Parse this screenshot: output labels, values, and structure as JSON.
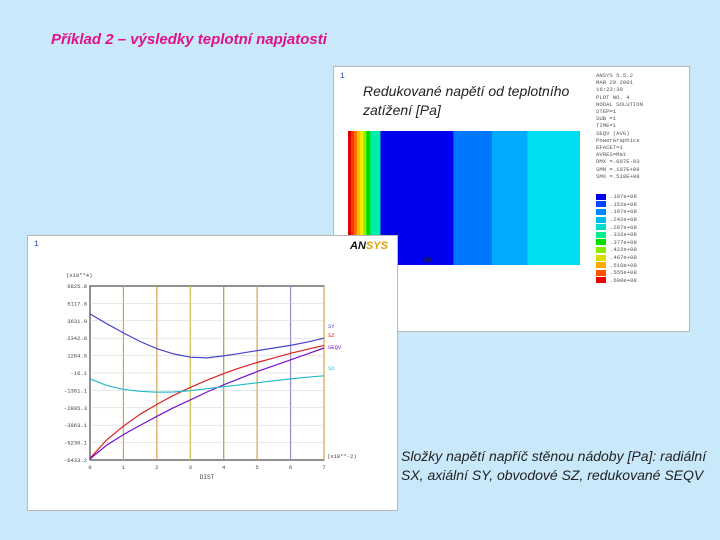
{
  "slide": {
    "title": "Příklad 2 – výsledky teplotní napjatosti"
  },
  "contour": {
    "window_number": "1",
    "caption": "Redukované napětí od teplotního zatížení [Pa]",
    "info_lines": [
      "ANSYS 5.5.2",
      "MAR 29 2001",
      "16:23:30",
      "PLOT NO.   4",
      "NODAL SOLUTION",
      "STEP=1",
      "SUB =1",
      "TIME=1",
      "SEQV      (AVG)",
      "PowerGraphics",
      "EFACET=1",
      "AVRES=Mat",
      "DMX =.607E-03",
      "SMN =.107E+08",
      "SMX =.510E+08"
    ],
    "legend_values": [
      ".107e+08",
      ".152e+08",
      ".197e+08",
      ".242e+08",
      ".287e+08",
      ".332e+08",
      ".377e+08",
      ".422e+08",
      ".467e+08",
      ".510e+08",
      ".555e+08",
      ".600e+08"
    ],
    "legend_colors": [
      "#0000ee",
      "#0044ff",
      "#0088ff",
      "#00bbee",
      "#00ddcc",
      "#00ee88",
      "#00dd00",
      "#88ee00",
      "#dddd00",
      "#ffaa00",
      "#ff5500",
      "#ee0000"
    ],
    "band_colors": [
      "#dd0000",
      "#ff3300",
      "#ff7700",
      "#ffbb00",
      "#eeee00",
      "#99ee00",
      "#00dd00",
      "#00eeaa",
      "#0000ee",
      "#0000ee",
      "#0077ff",
      "#00aaff",
      "#00ddee"
    ],
    "band_widths": [
      3,
      3,
      3,
      3,
      3,
      3,
      4,
      10,
      22,
      50,
      38,
      35,
      52
    ],
    "mark_label": "MN"
  },
  "graph": {
    "window_number": "1",
    "logo_left": "AN",
    "logo_right": "SYS",
    "y_multiplier": "(x10**4)",
    "xlabel": "DIST",
    "end_label": "(x10**-2)",
    "chart_data": {
      "type": "line",
      "title": "",
      "xlabel": "DIST",
      "ylabel": "",
      "x_multiplier": "(x10**-2)",
      "y_multiplier": "(x10**4)",
      "xlim": [
        0,
        7
      ],
      "ylim": [
        -6433.2,
        6825.8
      ],
      "x_ticks": [
        "0",
        "1",
        "2",
        "3",
        "4",
        "5",
        "6",
        "7"
      ],
      "y_ticks": [
        "6825.8",
        "5117.0",
        "3631.9",
        "2342.8",
        "1284.5",
        "-16.1",
        "-1301.1",
        "-2805.3",
        "-3963.1",
        "-5230.1",
        "-6433.2"
      ],
      "series": [
        {
          "name": "SY",
          "color": "#4444cc",
          "x": [
            0,
            0.5,
            1,
            1.5,
            2,
            2.5,
            3,
            3.5,
            4,
            4.5,
            5,
            5.5,
            6,
            6.5,
            7
          ],
          "y": [
            4700,
            3950,
            3250,
            2600,
            2050,
            1650,
            1400,
            1350,
            1500,
            1700,
            1900,
            2100,
            2300,
            2550,
            2850
          ]
        },
        {
          "name": "SZ",
          "color": "#dd2222",
          "x": [
            0,
            0.5,
            1,
            1.5,
            2,
            2.5,
            3,
            3.5,
            4,
            4.5,
            5,
            5.5,
            6,
            6.5,
            7
          ],
          "y": [
            -6300,
            -4900,
            -3850,
            -2950,
            -2200,
            -1500,
            -900,
            -350,
            150,
            600,
            1000,
            1350,
            1700,
            2000,
            2300
          ]
        },
        {
          "name": "SEQV",
          "color": "#7711cc",
          "x": [
            0,
            0.5,
            1,
            1.5,
            2,
            2.5,
            3,
            3.5,
            4,
            4.5,
            5,
            5.5,
            6,
            6.5,
            7
          ],
          "y": [
            -6350,
            -5300,
            -4500,
            -3800,
            -3100,
            -2450,
            -1850,
            -1250,
            -700,
            -200,
            300,
            750,
            1200,
            1650,
            2100
          ]
        },
        {
          "name": "SX",
          "color": "#22bbcc",
          "x": [
            0,
            0.5,
            1,
            1.5,
            2,
            2.5,
            3,
            3.5,
            4,
            4.5,
            5,
            5.5,
            6,
            6.5,
            7
          ],
          "y": [
            -250,
            -750,
            -1050,
            -1200,
            -1270,
            -1250,
            -1150,
            -1000,
            -850,
            -700,
            -550,
            -400,
            -250,
            -120,
            -20
          ]
        }
      ],
      "legend": [
        "SY",
        "SZ",
        "SEQV",
        "SX"
      ]
    }
  },
  "caption_bottom": "Složky napětí napříč stěnou nádoby [Pa]: radiální SX, axiální SY, obvodové SZ, redukované SEQV"
}
